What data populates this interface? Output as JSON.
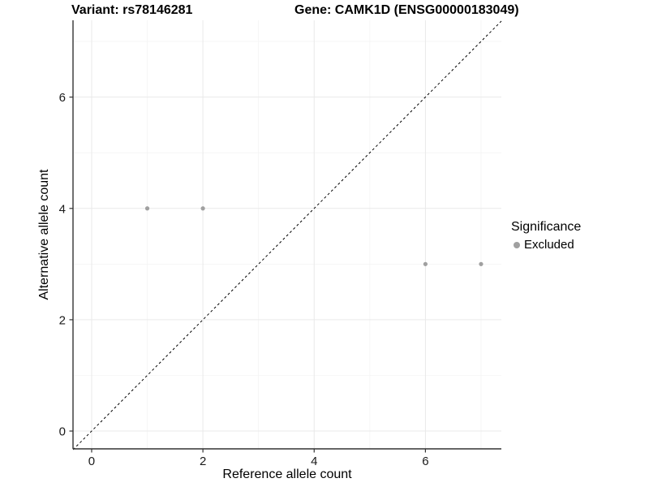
{
  "header": {
    "variant_title": "Variant: rs78146281",
    "gene_title": "Gene: CAMK1D (ENSG00000183049)"
  },
  "legend": {
    "title": "Significance",
    "items": [
      {
        "label": "Excluded",
        "color": "#a0a0a0"
      }
    ]
  },
  "colors": {
    "background": "#ffffff",
    "point": "#a0a0a0",
    "grid_major": "#e9e9e9",
    "grid_minor": "#f4f4f4",
    "axis_line": "#333333",
    "tick_text": "#1a1a1a",
    "diagonal_line": "#000000"
  },
  "chart_data": {
    "type": "scatter",
    "title": "Variant: rs78146281 | Gene: CAMK1D (ENSG00000183049)",
    "xlabel": "Reference allele count",
    "ylabel": "Alternative allele count",
    "xlim": [
      -0.335,
      7.365
    ],
    "ylim": [
      -0.32,
      7.38
    ],
    "x_ticks": [
      0,
      2,
      4,
      6
    ],
    "y_ticks": [
      0,
      2,
      4,
      6
    ],
    "x_minor_ticks": [
      1,
      3,
      5,
      7
    ],
    "y_minor_ticks": [
      1,
      3,
      5,
      7
    ],
    "grid": true,
    "legend_position": "right",
    "reference_line": {
      "kind": "identity",
      "style": "dashed"
    },
    "series": [
      {
        "name": "Excluded",
        "color": "#a0a0a0",
        "points": [
          [
            1,
            4
          ],
          [
            2,
            4
          ],
          [
            6,
            3
          ],
          [
            7,
            3
          ]
        ]
      }
    ]
  }
}
